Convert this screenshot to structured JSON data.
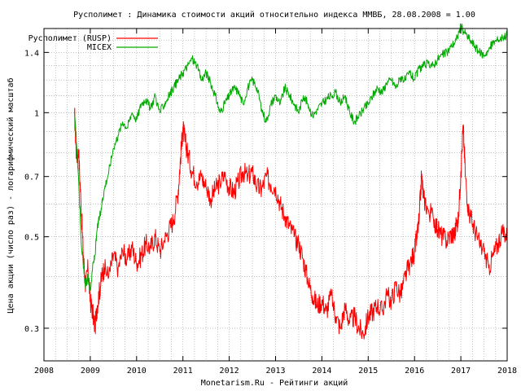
{
  "chart_data": {
    "type": "line",
    "title": "Русполимет : Динамика стоимости акций относительно индекса ММВБ, 28.08.2008 = 1.00",
    "xlabel": "Monetarism.Ru - Рейтинги акций",
    "ylabel": "Цена акции (число раз) - логарифмический масштаб",
    "y_scale": "log",
    "xlim": [
      2008.0,
      2018.0
    ],
    "ylim": [
      0.25,
      1.6
    ],
    "x_ticks": [
      "2008",
      "2009",
      "2010",
      "2011",
      "2012",
      "2013",
      "2014",
      "2015",
      "2016",
      "2017",
      "2018"
    ],
    "y_ticks": [
      {
        "value": 0.3,
        "label": "0.3"
      },
      {
        "value": 0.5,
        "label": "0.5"
      },
      {
        "value": 0.7,
        "label": "0.7"
      },
      {
        "value": 1.0,
        "label": "1"
      },
      {
        "value": 1.4,
        "label": "1.4"
      }
    ],
    "grid": true,
    "legend_position": "top-left",
    "series": [
      {
        "name": "Русполимет (RUSP)",
        "color": "#ff0000",
        "x": [
          2008.66,
          2008.7,
          2008.75,
          2008.8,
          2008.85,
          2008.9,
          2008.95,
          2009.0,
          2009.05,
          2009.1,
          2009.15,
          2009.2,
          2009.25,
          2009.3,
          2009.4,
          2009.5,
          2009.6,
          2009.7,
          2009.8,
          2009.9,
          2010.0,
          2010.1,
          2010.2,
          2010.3,
          2010.4,
          2010.5,
          2010.6,
          2010.7,
          2010.8,
          2010.9,
          2010.95,
          2011.0,
          2011.05,
          2011.1,
          2011.2,
          2011.3,
          2011.4,
          2011.5,
          2011.6,
          2011.7,
          2011.8,
          2011.9,
          2012.0,
          2012.1,
          2012.2,
          2012.3,
          2012.4,
          2012.5,
          2012.6,
          2012.7,
          2012.8,
          2012.9,
          2013.0,
          2013.1,
          2013.2,
          2013.3,
          2013.4,
          2013.5,
          2013.6,
          2013.7,
          2013.8,
          2013.9,
          2014.0,
          2014.1,
          2014.2,
          2014.3,
          2014.4,
          2014.5,
          2014.6,
          2014.7,
          2014.8,
          2014.9,
          2015.0,
          2015.1,
          2015.2,
          2015.3,
          2015.4,
          2015.5,
          2015.6,
          2015.7,
          2015.8,
          2015.9,
          2016.0,
          2016.05,
          2016.1,
          2016.15,
          2016.2,
          2016.3,
          2016.4,
          2016.5,
          2016.6,
          2016.7,
          2016.8,
          2016.85,
          2016.9,
          2016.95,
          2017.0,
          2017.05,
          2017.1,
          2017.15,
          2017.2,
          2017.3,
          2017.4,
          2017.5,
          2017.6,
          2017.7,
          2017.8,
          2017.9,
          2018.0
        ],
        "y": [
          1.0,
          0.78,
          0.8,
          0.6,
          0.45,
          0.38,
          0.42,
          0.35,
          0.33,
          0.3,
          0.34,
          0.37,
          0.4,
          0.42,
          0.4,
          0.45,
          0.42,
          0.46,
          0.44,
          0.47,
          0.43,
          0.45,
          0.48,
          0.47,
          0.5,
          0.46,
          0.49,
          0.52,
          0.55,
          0.65,
          0.78,
          0.92,
          0.85,
          0.8,
          0.72,
          0.68,
          0.7,
          0.66,
          0.62,
          0.65,
          0.68,
          0.7,
          0.66,
          0.64,
          0.68,
          0.72,
          0.7,
          0.72,
          0.66,
          0.65,
          0.7,
          0.67,
          0.66,
          0.6,
          0.56,
          0.53,
          0.5,
          0.48,
          0.44,
          0.39,
          0.36,
          0.34,
          0.35,
          0.33,
          0.36,
          0.32,
          0.3,
          0.34,
          0.31,
          0.32,
          0.3,
          0.29,
          0.32,
          0.33,
          0.34,
          0.33,
          0.36,
          0.35,
          0.38,
          0.36,
          0.4,
          0.43,
          0.46,
          0.5,
          0.55,
          0.7,
          0.62,
          0.58,
          0.56,
          0.52,
          0.5,
          0.49,
          0.51,
          0.5,
          0.53,
          0.56,
          0.72,
          0.93,
          0.7,
          0.6,
          0.56,
          0.52,
          0.48,
          0.46,
          0.42,
          0.45,
          0.48,
          0.52,
          0.5
        ]
      },
      {
        "name": "MICEX",
        "color": "#00aa00",
        "x": [
          2008.66,
          2008.7,
          2008.75,
          2008.8,
          2008.85,
          2008.9,
          2008.95,
          2009.0,
          2009.05,
          2009.1,
          2009.15,
          2009.2,
          2009.25,
          2009.3,
          2009.4,
          2009.5,
          2009.6,
          2009.7,
          2009.8,
          2009.9,
          2010.0,
          2010.1,
          2010.2,
          2010.3,
          2010.4,
          2010.5,
          2010.6,
          2010.7,
          2010.8,
          2010.9,
          2011.0,
          2011.1,
          2011.2,
          2011.3,
          2011.4,
          2011.5,
          2011.6,
          2011.7,
          2011.8,
          2011.9,
          2012.0,
          2012.1,
          2012.2,
          2012.3,
          2012.4,
          2012.5,
          2012.6,
          2012.7,
          2012.8,
          2012.9,
          2013.0,
          2013.1,
          2013.2,
          2013.3,
          2013.4,
          2013.5,
          2013.6,
          2013.7,
          2013.8,
          2013.9,
          2014.0,
          2014.1,
          2014.2,
          2014.3,
          2014.4,
          2014.5,
          2014.6,
          2014.7,
          2014.8,
          2014.9,
          2015.0,
          2015.1,
          2015.2,
          2015.3,
          2015.4,
          2015.5,
          2015.6,
          2015.7,
          2015.8,
          2015.9,
          2016.0,
          2016.1,
          2016.2,
          2016.3,
          2016.4,
          2016.5,
          2016.6,
          2016.7,
          2016.8,
          2016.9,
          2017.0,
          2017.1,
          2017.2,
          2017.3,
          2017.4,
          2017.5,
          2017.6,
          2017.7,
          2017.8,
          2017.9,
          2018.0
        ],
        "y": [
          1.0,
          0.85,
          0.68,
          0.5,
          0.42,
          0.38,
          0.4,
          0.37,
          0.42,
          0.45,
          0.52,
          0.56,
          0.6,
          0.65,
          0.72,
          0.82,
          0.88,
          0.95,
          0.92,
          1.0,
          0.96,
          1.05,
          1.08,
          1.02,
          1.1,
          1.0,
          1.05,
          1.1,
          1.15,
          1.2,
          1.25,
          1.3,
          1.35,
          1.3,
          1.2,
          1.25,
          1.18,
          1.1,
          1.0,
          1.05,
          1.1,
          1.15,
          1.12,
          1.05,
          1.15,
          1.2,
          1.15,
          1.02,
          0.95,
          1.05,
          1.1,
          1.05,
          1.15,
          1.1,
          1.05,
          1.0,
          1.1,
          1.05,
          0.98,
          1.02,
          1.05,
          1.08,
          1.1,
          1.12,
          1.05,
          1.1,
          1.0,
          0.95,
          0.98,
          1.02,
          1.05,
          1.1,
          1.15,
          1.12,
          1.18,
          1.2,
          1.15,
          1.22,
          1.2,
          1.25,
          1.2,
          1.28,
          1.3,
          1.32,
          1.3,
          1.35,
          1.38,
          1.4,
          1.45,
          1.5,
          1.62,
          1.55,
          1.5,
          1.45,
          1.4,
          1.38,
          1.42,
          1.48,
          1.5,
          1.52,
          1.55
        ]
      }
    ]
  }
}
